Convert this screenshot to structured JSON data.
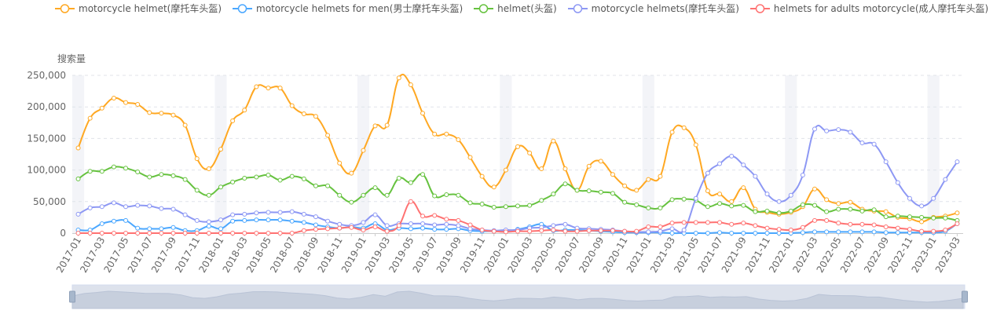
{
  "chart_data": {
    "type": "line",
    "ylabel": "搜索量",
    "ylim": [
      0,
      250000
    ],
    "yticks": [
      "0",
      "50,000",
      "100,000",
      "150,000",
      "200,000",
      "250,000"
    ],
    "grid": true,
    "legend_position": "top",
    "x": [
      "2017-01",
      "2017-02",
      "2017-03",
      "2017-04",
      "2017-05",
      "2017-06",
      "2017-07",
      "2017-08",
      "2017-09",
      "2017-10",
      "2017-11",
      "2017-12",
      "2018-01",
      "2018-02",
      "2018-03",
      "2018-04",
      "2018-05",
      "2018-06",
      "2018-07",
      "2018-08",
      "2018-09",
      "2018-10",
      "2018-11",
      "2018-12",
      "2019-01",
      "2019-02",
      "2019-03",
      "2019-04",
      "2019-05",
      "2019-06",
      "2019-07",
      "2019-08",
      "2019-09",
      "2019-10",
      "2019-11",
      "2019-12",
      "2020-01",
      "2020-02",
      "2020-03",
      "2020-04",
      "2020-05",
      "2020-06",
      "2020-07",
      "2020-08",
      "2020-09",
      "2020-10",
      "2020-11",
      "2020-12",
      "2021-01",
      "2021-02",
      "2021-03",
      "2021-04",
      "2021-05",
      "2021-06",
      "2021-07",
      "2021-08",
      "2021-09",
      "2021-10",
      "2021-11",
      "2021-12",
      "2022-01",
      "2022-02",
      "2022-03",
      "2022-04",
      "2022-05",
      "2022-06",
      "2022-07",
      "2022-08",
      "2022-09",
      "2022-10",
      "2022-11",
      "2022-12",
      "2023-01",
      "2023-02",
      "2023-03"
    ],
    "series": [
      {
        "name": "motorcycle helmet(摩托车头盔)",
        "color": "#ffa822",
        "values": [
          135000,
          182000,
          198000,
          214000,
          207000,
          204000,
          191000,
          190000,
          187000,
          171000,
          118000,
          102000,
          133000,
          178000,
          195000,
          232000,
          230000,
          230000,
          202000,
          189000,
          185000,
          155000,
          111000,
          95000,
          131000,
          170000,
          171000,
          246000,
          235000,
          190000,
          157000,
          157000,
          148000,
          120000,
          90000,
          73000,
          100000,
          137000,
          127000,
          102000,
          146000,
          102000,
          68000,
          106000,
          114000,
          93000,
          75000,
          68000,
          85000,
          90000,
          160000,
          167000,
          140000,
          67000,
          62000,
          50000,
          72000,
          38000,
          33000,
          30000,
          33000,
          42000,
          70000,
          53000,
          47000,
          49000,
          38000,
          35000,
          34000,
          25000,
          23000,
          18000,
          25000,
          27000,
          32000
        ]
      },
      {
        "name": "motorcycle helmets for men(男士摩托车头盔)",
        "color": "#4aa7ff",
        "values": [
          5000,
          5000,
          15000,
          19000,
          20000,
          8000,
          7000,
          7000,
          9000,
          4000,
          4000,
          11000,
          7000,
          19000,
          20000,
          21000,
          21000,
          21000,
          19000,
          17000,
          13000,
          10000,
          8000,
          10000,
          8000,
          15000,
          5000,
          8000,
          7000,
          8000,
          6000,
          6000,
          7000,
          4000,
          3000,
          3000,
          3000,
          6000,
          10000,
          14000,
          4000,
          5000,
          5000,
          4000,
          3000,
          2000,
          1000,
          1000,
          1000,
          1000,
          0,
          0,
          0,
          0,
          1000,
          0,
          0,
          0,
          0,
          0,
          0,
          1000,
          2000,
          2000,
          2000,
          2000,
          2000,
          2000,
          1000,
          1000,
          1000,
          1000,
          1000,
          3000,
          15000
        ]
      },
      {
        "name": "helmet(头盔)",
        "color": "#66c23f",
        "values": [
          86000,
          98000,
          98000,
          105000,
          103000,
          97000,
          89000,
          93000,
          91000,
          85000,
          68000,
          60000,
          73000,
          81000,
          87000,
          89000,
          92000,
          84000,
          90000,
          86000,
          75000,
          75000,
          60000,
          49000,
          60000,
          72000,
          60000,
          87000,
          80000,
          93000,
          59000,
          61000,
          60000,
          48000,
          46000,
          41000,
          42000,
          43000,
          44000,
          52000,
          62000,
          78000,
          68000,
          67000,
          65000,
          63000,
          49000,
          45000,
          40000,
          40000,
          53000,
          54000,
          52000,
          42000,
          47000,
          43000,
          44000,
          34000,
          35000,
          32000,
          35000,
          45000,
          44000,
          34000,
          38000,
          38000,
          35000,
          37000,
          26000,
          27000,
          26000,
          25000,
          24000,
          24000,
          20000
        ]
      },
      {
        "name": "motorcycle helmets(摩托车头盔)",
        "color": "#8d98f4",
        "values": [
          30000,
          40000,
          42000,
          48000,
          42000,
          44000,
          43000,
          39000,
          38000,
          29000,
          20000,
          18000,
          21000,
          29000,
          30000,
          32000,
          33000,
          33000,
          34000,
          30000,
          26000,
          19000,
          14000,
          12000,
          17000,
          29000,
          12000,
          15000,
          15000,
          15000,
          13000,
          14000,
          12000,
          7000,
          5000,
          4000,
          5000,
          5000,
          8000,
          9000,
          12000,
          14000,
          8000,
          7000,
          6000,
          5000,
          3000,
          2000,
          2000,
          3000,
          7000,
          5000,
          55000,
          95000,
          110000,
          122000,
          108000,
          90000,
          62000,
          50000,
          60000,
          92000,
          165000,
          162000,
          164000,
          160000,
          143000,
          141000,
          113000,
          80000,
          55000,
          43000,
          55000,
          85000,
          113000
        ]
      },
      {
        "name": "helmets for adults motorcycle(成人摩托车头盔)",
        "color": "#ff7272",
        "values": [
          0,
          0,
          0,
          0,
          0,
          0,
          0,
          0,
          0,
          0,
          0,
          0,
          0,
          0,
          0,
          0,
          0,
          0,
          0,
          4000,
          6000,
          7000,
          8000,
          9000,
          5000,
          10000,
          3000,
          12000,
          50000,
          27000,
          28000,
          22000,
          20000,
          13000,
          5000,
          3000,
          2000,
          3000,
          3000,
          4000,
          5000,
          3000,
          3000,
          4000,
          4000,
          4000,
          3000,
          3000,
          10000,
          10000,
          16000,
          17000,
          17000,
          17000,
          17000,
          14000,
          16000,
          12000,
          8000,
          6000,
          5000,
          9000,
          20000,
          20000,
          16000,
          14000,
          14000,
          13000,
          10000,
          8000,
          6000,
          3000,
          3000,
          5000,
          15000
        ]
      }
    ]
  }
}
